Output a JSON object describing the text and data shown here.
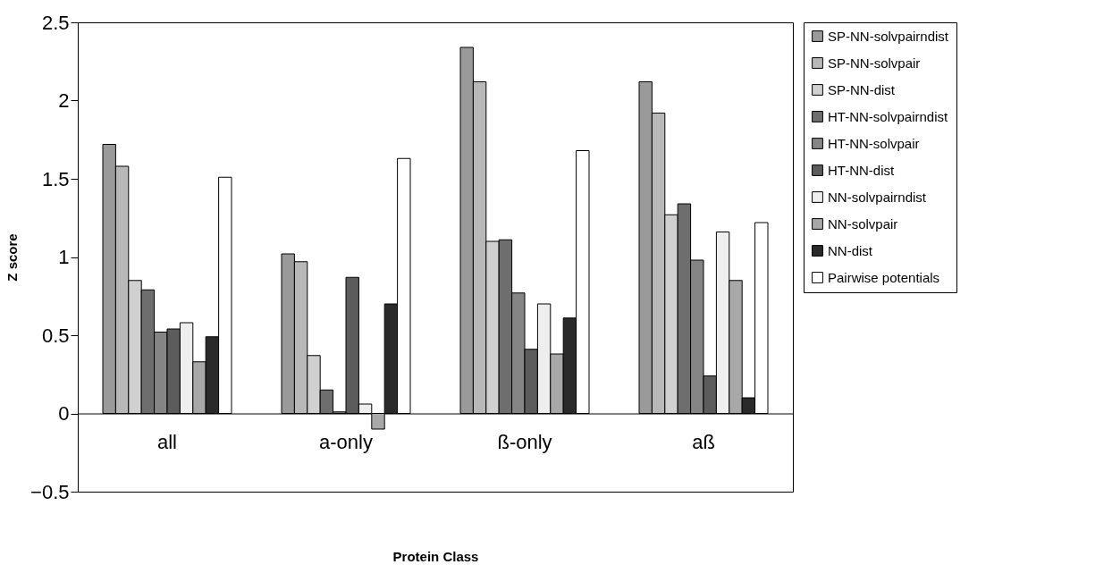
{
  "chart_data": {
    "type": "bar",
    "xlabel": "Protein Class",
    "ylabel": "Z score",
    "categories": [
      "all",
      "a-only",
      "ß-only",
      "aß"
    ],
    "ylim": [
      -0.5,
      2.5
    ],
    "yticks": [
      -0.5,
      0,
      0.5,
      1,
      1.5,
      2,
      2.5
    ],
    "grid": false,
    "legend": "right",
    "series": [
      {
        "name": "SP-NN-solvpairndist",
        "color": "#9a9a9a",
        "values": [
          1.72,
          1.02,
          2.34,
          2.12
        ]
      },
      {
        "name": "SP-NN-solvpair",
        "color": "#b8b8b8",
        "values": [
          1.58,
          0.97,
          2.12,
          1.92
        ]
      },
      {
        "name": "SP-NN-dist",
        "color": "#d0d0d0",
        "values": [
          0.85,
          0.37,
          1.1,
          1.27
        ]
      },
      {
        "name": "HT-NN-solvpairndist",
        "color": "#6e6e6e",
        "values": [
          0.79,
          0.15,
          1.11,
          1.34
        ]
      },
      {
        "name": "HT-NN-solvpair",
        "color": "#858585",
        "values": [
          0.52,
          0.01,
          0.77,
          0.98
        ]
      },
      {
        "name": "HT-NN-dist",
        "color": "#5c5c5c",
        "values": [
          0.54,
          0.87,
          0.41,
          0.24
        ]
      },
      {
        "name": "NN-solvpairndist",
        "color": "#eeeeee",
        "values": [
          0.58,
          0.06,
          0.7,
          1.16
        ]
      },
      {
        "name": "NN-solvpair",
        "color": "#a8a8a8",
        "values": [
          0.33,
          -0.1,
          0.38,
          0.85
        ]
      },
      {
        "name": "NN-dist",
        "color": "#2a2a2a",
        "values": [
          0.49,
          0.7,
          0.61,
          0.1
        ]
      },
      {
        "name": "Pairwise potentials",
        "color": "#ffffff",
        "values": [
          1.51,
          1.63,
          1.68,
          1.22
        ]
      }
    ]
  }
}
